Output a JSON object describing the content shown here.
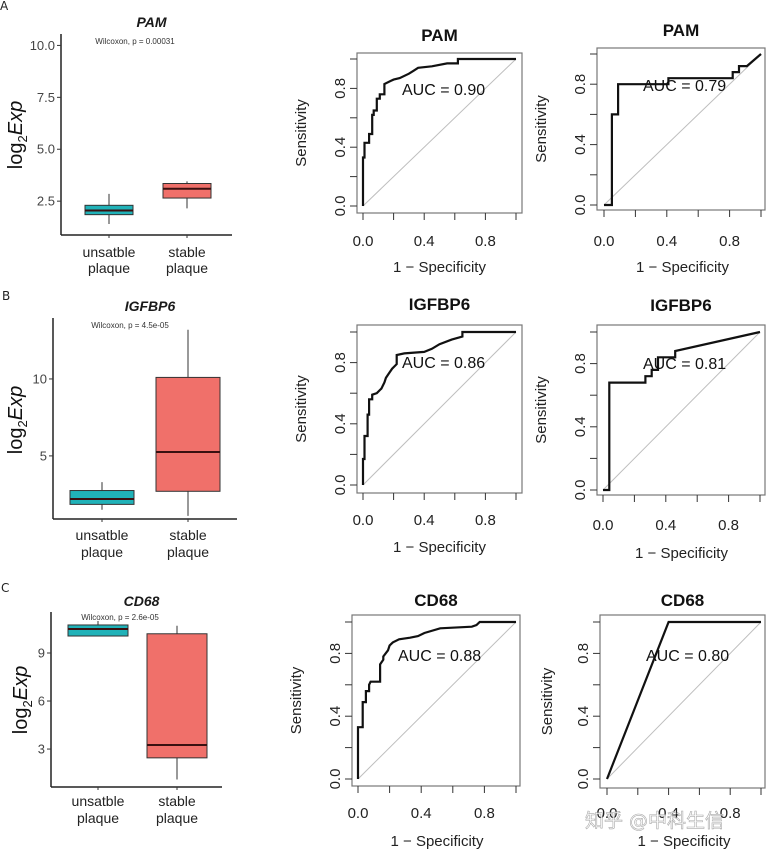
{
  "figure": {
    "watermark": "知乎 @中科生信"
  },
  "colors": {
    "unstable": "#20B2B8",
    "stable": "#F0706A",
    "roc_line": "#111111",
    "diagonal": "#BEBEBE",
    "frame": "#777777"
  },
  "chart_data": [
    {
      "type": "box",
      "panel": "A",
      "title": "PAM",
      "annotation": "Wilcoxon, p = 0.00031",
      "ylabel": "log2Exp",
      "ylabel_main": "log",
      "ylabel_sub": "2",
      "ylabel_tail": "Exp",
      "ylim": [
        0.87,
        10.55
      ],
      "yticks": [
        2.5,
        5.0,
        7.5,
        10.0
      ],
      "ytick_labels": [
        "2.5",
        "5.0",
        "7.5",
        "10.0"
      ],
      "categories": [
        "unsatble plaque",
        "stable plaque"
      ],
      "category_lines": [
        [
          "unsatble",
          "plaque"
        ],
        [
          "stable",
          "plaque"
        ]
      ],
      "boxes": [
        {
          "group": "unsatble plaque",
          "min": 1.4,
          "q1": 1.85,
          "median": 2.05,
          "q3": 2.3,
          "max": 2.85
        },
        {
          "group": "stable plaque",
          "min": 2.15,
          "q1": 2.65,
          "median": 3.1,
          "q3": 3.35,
          "max": 3.45
        }
      ]
    },
    {
      "type": "line",
      "panel": "A",
      "title": "PAM",
      "auc_label": "AUC = 0.90",
      "xlabel": "1 − Specificity",
      "ylabel": "Sensitivity",
      "xlim": [
        0,
        1
      ],
      "ylim": [
        0,
        1
      ],
      "xtick_labels": [
        "0.0",
        "0.4",
        "0.8"
      ],
      "ytick_labels": [
        "0.0",
        "0.4",
        "0.8"
      ],
      "x": [
        0,
        0,
        0.01,
        0.01,
        0.04,
        0.04,
        0.06,
        0.06,
        0.07,
        0.07,
        0.09,
        0.09,
        0.11,
        0.11,
        0.14,
        0.14,
        0.18,
        0.2,
        0.24,
        0.3,
        0.33,
        0.36,
        0.45,
        0.55,
        0.62,
        0.62,
        0.7,
        1.0
      ],
      "y": [
        0,
        0.33,
        0.33,
        0.43,
        0.43,
        0.49,
        0.49,
        0.62,
        0.62,
        0.65,
        0.65,
        0.73,
        0.73,
        0.76,
        0.76,
        0.83,
        0.85,
        0.86,
        0.87,
        0.9,
        0.92,
        0.94,
        0.95,
        0.97,
        0.97,
        1.0,
        1.0,
        1.0
      ]
    },
    {
      "type": "line",
      "panel": "A",
      "title": "PAM",
      "auc_label": "AUC = 0.79",
      "xlabel": "1 − Specificity",
      "ylabel": "Sensitivity",
      "xlim": [
        0,
        1
      ],
      "ylim": [
        0,
        1
      ],
      "xtick_labels": [
        "0.0",
        "0.4",
        "0.8"
      ],
      "ytick_labels": [
        "0.0",
        "0.4",
        "0.8"
      ],
      "x": [
        0,
        0.05,
        0.05,
        0.09,
        0.09,
        0.41,
        0.41,
        0.82,
        0.82,
        0.86,
        0.86,
        0.91,
        1.0
      ],
      "y": [
        0,
        0,
        0.6,
        0.6,
        0.8,
        0.8,
        0.84,
        0.84,
        0.88,
        0.88,
        0.92,
        0.92,
        1.0
      ]
    },
    {
      "type": "box",
      "panel": "B",
      "title": "IGFBP6",
      "annotation": "Wilcoxon, p = 4.5e-05",
      "ylabel": "log2Exp",
      "ylabel_main": "log",
      "ylabel_sub": "2",
      "ylabel_tail": "Exp",
      "ylim": [
        0.9,
        13.96
      ],
      "yticks": [
        5,
        10
      ],
      "ytick_labels": [
        "5",
        "10"
      ],
      "categories": [
        "unsatble plaque",
        "stable plaque"
      ],
      "category_lines": [
        [
          "unsatble",
          "plaque"
        ],
        [
          "stable",
          "plaque"
        ]
      ],
      "boxes": [
        {
          "group": "unsatble plaque",
          "min": 1.5,
          "q1": 1.85,
          "median": 2.2,
          "q3": 2.75,
          "max": 3.3
        },
        {
          "group": "stable plaque",
          "min": 1.1,
          "q1": 2.7,
          "median": 5.25,
          "q3": 10.1,
          "max": 13.2
        }
      ]
    },
    {
      "type": "line",
      "panel": "B",
      "title": "IGFBP6",
      "auc_label": "AUC = 0.86",
      "xlabel": "1 − Specificity",
      "ylabel": "Sensitivity",
      "xlim": [
        0,
        1
      ],
      "ylim": [
        0,
        1
      ],
      "xtick_labels": [
        "0.0",
        "0.4",
        "0.8"
      ],
      "ytick_labels": [
        "0.0",
        "0.4",
        "0.8"
      ],
      "x": [
        0,
        0,
        0.01,
        0.01,
        0.03,
        0.03,
        0.04,
        0.04,
        0.06,
        0.06,
        0.09,
        0.11,
        0.12,
        0.14,
        0.15,
        0.17,
        0.19,
        0.22,
        0.22,
        0.27,
        0.4,
        0.45,
        0.5,
        0.58,
        0.65,
        0.65,
        1.0
      ],
      "y": [
        0,
        0.17,
        0.17,
        0.32,
        0.32,
        0.46,
        0.46,
        0.56,
        0.56,
        0.59,
        0.6,
        0.62,
        0.63,
        0.67,
        0.7,
        0.73,
        0.76,
        0.79,
        0.85,
        0.86,
        0.87,
        0.89,
        0.92,
        0.95,
        0.97,
        1.0,
        1.0
      ]
    },
    {
      "type": "line",
      "panel": "B",
      "title": "IGFBP6",
      "auc_label": "AUC = 0.81",
      "xlabel": "1 − Specificity",
      "ylabel": "Sensitivity",
      "xlim": [
        0,
        1
      ],
      "ylim": [
        0,
        1
      ],
      "xtick_labels": [
        "0.0",
        "0.4",
        "0.8"
      ],
      "ytick_labels": [
        "0.0",
        "0.4",
        "0.8"
      ],
      "x": [
        0,
        0.04,
        0.04,
        0.27,
        0.27,
        0.31,
        0.31,
        0.35,
        0.35,
        0.46,
        0.46,
        1.0
      ],
      "y": [
        0,
        0,
        0.68,
        0.68,
        0.72,
        0.72,
        0.76,
        0.76,
        0.84,
        0.84,
        0.88,
        1.0
      ]
    },
    {
      "type": "box",
      "panel": "C",
      "title": "CD68",
      "annotation": "Wilcoxon, p = 2.6e-05",
      "ylabel": "log2Exp",
      "ylabel_main": "log",
      "ylabel_sub": "2",
      "ylabel_tail": "Exp",
      "ylim": [
        0.63,
        11.56
      ],
      "yticks": [
        3,
        6,
        9
      ],
      "ytick_labels": [
        "3",
        "6",
        "9"
      ],
      "categories": [
        "unsatble plaque",
        "stable plaque"
      ],
      "category_lines": [
        [
          "unsatble",
          "plaque"
        ],
        [
          "stable",
          "plaque"
        ]
      ],
      "boxes": [
        {
          "group": "unsatble plaque",
          "min": 10.06,
          "q1": 10.06,
          "median": 10.5,
          "q3": 10.75,
          "max": 11.0
        },
        {
          "group": "stable plaque",
          "min": 1.1,
          "q1": 2.45,
          "median": 3.25,
          "q3": 10.2,
          "max": 10.7
        }
      ]
    },
    {
      "type": "line",
      "panel": "C",
      "title": "CD68",
      "auc_label": "AUC = 0.88",
      "xlabel": "1 − Specificity",
      "ylabel": "Sensitivity",
      "xlim": [
        0,
        1
      ],
      "ylim": [
        0,
        1
      ],
      "xtick_labels": [
        "0.0",
        "0.4",
        "0.8"
      ],
      "ytick_labels": [
        "0.0",
        "0.4",
        "0.8"
      ],
      "x": [
        0,
        0,
        0.03,
        0.03,
        0.05,
        0.05,
        0.07,
        0.07,
        0.08,
        0.09,
        0.14,
        0.14,
        0.16,
        0.16,
        0.19,
        0.2,
        0.22,
        0.26,
        0.33,
        0.38,
        0.42,
        0.52,
        0.72,
        0.75,
        0.77,
        1.0
      ],
      "y": [
        0,
        0.33,
        0.33,
        0.49,
        0.49,
        0.56,
        0.56,
        0.6,
        0.62,
        0.62,
        0.62,
        0.73,
        0.76,
        0.78,
        0.82,
        0.85,
        0.87,
        0.89,
        0.9,
        0.91,
        0.93,
        0.96,
        0.97,
        0.98,
        1.0,
        1.0
      ]
    },
    {
      "type": "line",
      "panel": "C",
      "title": "CD68",
      "auc_label": "AUC = 0.80",
      "xlabel": "1 − Specificity",
      "ylabel": "Sensitivity",
      "xlim": [
        0,
        1
      ],
      "ylim": [
        0,
        1
      ],
      "xtick_labels": [
        "0.0",
        "0.4",
        "0.8"
      ],
      "ytick_labels": [
        "0.0",
        "0.4",
        "0.8"
      ],
      "x": [
        0,
        0.4,
        1.0
      ],
      "y": [
        0,
        1.0,
        1.0
      ]
    }
  ]
}
